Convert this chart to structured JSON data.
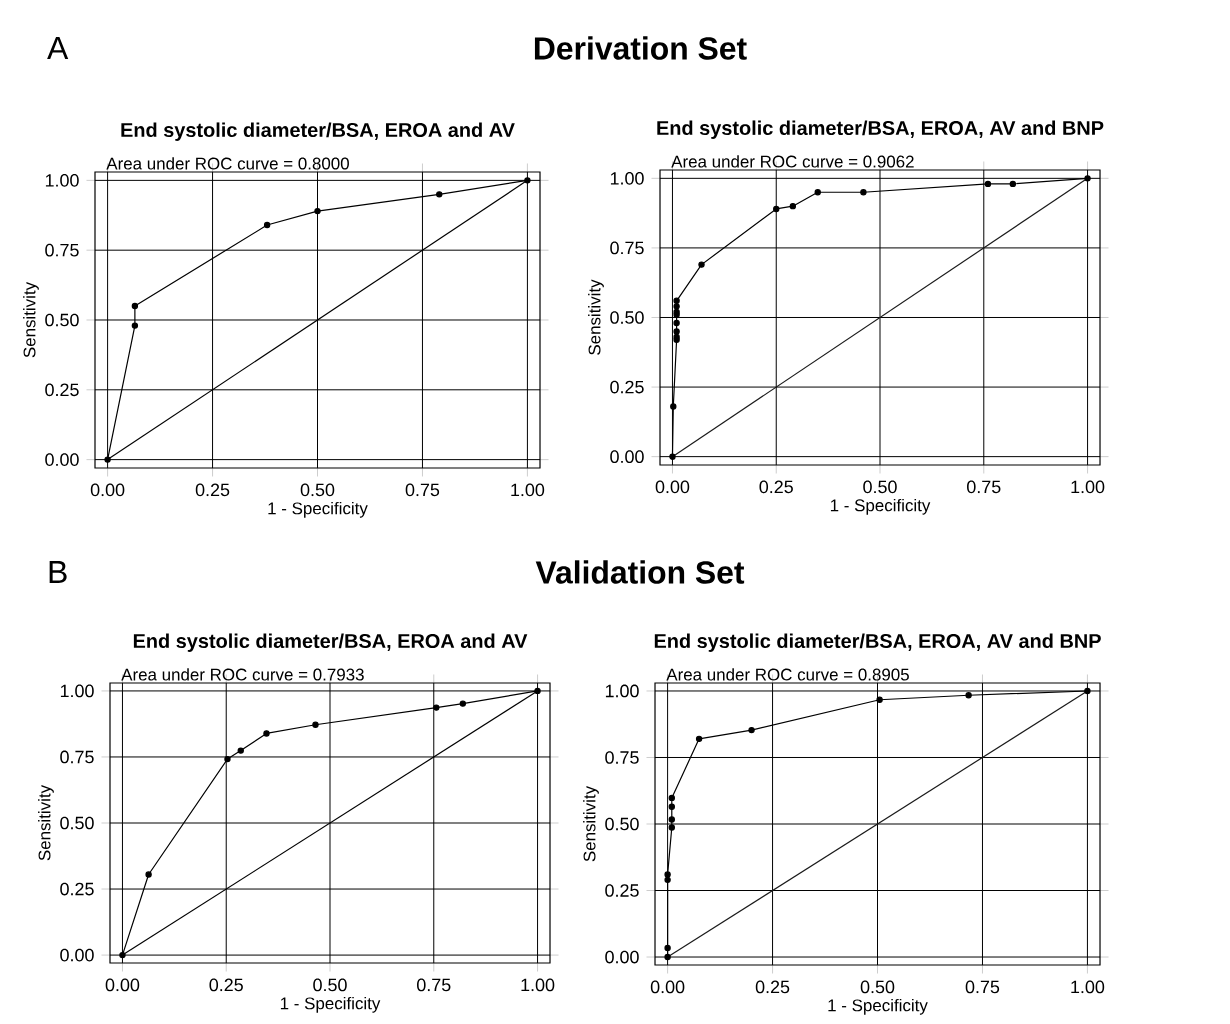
{
  "chart_data": [
    {
      "type": "line",
      "title": "End systolic diameter/BSA, EROA and AV",
      "xlabel": "1 - Specificity",
      "ylabel": "Sensitivity",
      "annotations": [
        "Area under ROC curve = 0.8000",
        "A",
        "Derivation Set"
      ],
      "xlim": [
        -0.03,
        1.03
      ],
      "ylim": [
        -0.03,
        1.03
      ],
      "grid": true,
      "xticks": [
        {
          "value": 0,
          "label": "0.00"
        },
        {
          "value": 0.25,
          "label": "0.25"
        },
        {
          "value": 0.5,
          "label": "0.50"
        },
        {
          "value": 0.75,
          "label": "0.75"
        },
        {
          "value": 1,
          "label": "1.00"
        }
      ],
      "yticks": [
        {
          "value": 0,
          "label": "0.00"
        },
        {
          "value": 0.25,
          "label": "0.25"
        },
        {
          "value": 0.5,
          "label": "0.50"
        },
        {
          "value": 0.75,
          "label": "0.75"
        },
        {
          "value": 1,
          "label": "1.00"
        }
      ],
      "series": [
        {
          "color": "#000000",
          "marker": "circle",
          "x": [
            0,
            0.065,
            0.065,
            0.38,
            0.5,
            0.79,
            1
          ],
          "values": [
            0,
            0.48,
            0.55,
            0.84,
            0.89,
            0.95,
            1
          ]
        },
        {
          "color": "#000000",
          "marker": "none",
          "x": [
            0,
            1
          ],
          "values": [
            0,
            1
          ]
        }
      ]
    },
    {
      "type": "line",
      "title": "End systolic diameter/BSA, EROA, AV and BNP",
      "xlabel": "1 - Specificity",
      "ylabel": "Sensitivity",
      "annotations": [
        "Area under ROC curve = 0.9062"
      ],
      "xlim": [
        -0.03,
        1.03
      ],
      "ylim": [
        -0.03,
        1.03
      ],
      "grid": true,
      "xticks": [
        {
          "value": 0,
          "label": "0.00"
        },
        {
          "value": 0.25,
          "label": "0.25"
        },
        {
          "value": 0.5,
          "label": "0.50"
        },
        {
          "value": 0.75,
          "label": "0.75"
        },
        {
          "value": 1,
          "label": "1.00"
        }
      ],
      "yticks": [
        {
          "value": 0,
          "label": "0.00"
        },
        {
          "value": 0.25,
          "label": "0.25"
        },
        {
          "value": 0.5,
          "label": "0.50"
        },
        {
          "value": 0.75,
          "label": "0.75"
        },
        {
          "value": 1,
          "label": "1.00"
        }
      ],
      "series": [
        {
          "color": "#000000",
          "marker": "circle",
          "x": [
            0,
            0.002,
            0.01,
            0.01,
            0.01,
            0.01,
            0.01,
            0.01,
            0.01,
            0.01,
            0.07,
            0.25,
            0.29,
            0.35,
            0.46,
            0.76,
            0.82,
            1
          ],
          "values": [
            0,
            0.18,
            0.42,
            0.43,
            0.45,
            0.48,
            0.51,
            0.52,
            0.54,
            0.56,
            0.69,
            0.89,
            0.9,
            0.95,
            0.95,
            0.98,
            0.98,
            1
          ]
        },
        {
          "color": "#1a1a1a",
          "marker": "none",
          "x": [
            0,
            1
          ],
          "values": [
            0,
            1
          ]
        }
      ]
    },
    {
      "type": "line",
      "title": "End systolic diameter/BSA, EROA and AV",
      "xlabel": "1 - Specificity",
      "ylabel": "Sensitivity",
      "annotations": [
        "Area under ROC curve = 0.7933",
        "B",
        "Validation Set"
      ],
      "xlim": [
        -0.03,
        1.03
      ],
      "ylim": [
        -0.03,
        1.03
      ],
      "grid": true,
      "xticks": [
        {
          "value": 0,
          "label": "0.00"
        },
        {
          "value": 0.25,
          "label": "0.25"
        },
        {
          "value": 0.5,
          "label": "0.50"
        },
        {
          "value": 0.75,
          "label": "0.75"
        },
        {
          "value": 1,
          "label": "1.00"
        }
      ],
      "yticks": [
        {
          "value": 0,
          "label": "0.00"
        },
        {
          "value": 0.25,
          "label": "0.25"
        },
        {
          "value": 0.5,
          "label": "0.50"
        },
        {
          "value": 0.75,
          "label": "0.75"
        },
        {
          "value": 1,
          "label": "1.00"
        }
      ],
      "series": [
        {
          "color": "#000000",
          "marker": "circle",
          "x": [
            0,
            0.063,
            0.253,
            0.285,
            0.347,
            0.465,
            0.756,
            0.82,
            1
          ],
          "values": [
            0,
            0.305,
            0.742,
            0.774,
            0.839,
            0.872,
            0.937,
            0.952,
            1
          ]
        },
        {
          "color": "#000000",
          "marker": "none",
          "x": [
            0,
            1
          ],
          "values": [
            0,
            1
          ]
        }
      ]
    },
    {
      "type": "line",
      "title": "End systolic diameter/BSA, EROA, AV and BNP",
      "xlabel": "1 - Specificity",
      "ylabel": "Sensitivity",
      "annotations": [
        "Area under ROC curve = 0.8905"
      ],
      "xlim": [
        -0.03,
        1.03
      ],
      "ylim": [
        -0.03,
        1.03
      ],
      "grid": true,
      "xticks": [
        {
          "value": 0,
          "label": "0.00"
        },
        {
          "value": 0.25,
          "label": "0.25"
        },
        {
          "value": 0.5,
          "label": "0.50"
        },
        {
          "value": 0.75,
          "label": "0.75"
        },
        {
          "value": 1,
          "label": "1.00"
        }
      ],
      "yticks": [
        {
          "value": 0,
          "label": "0.00"
        },
        {
          "value": 0.25,
          "label": "0.25"
        },
        {
          "value": 0.5,
          "label": "0.50"
        },
        {
          "value": 0.75,
          "label": "0.75"
        },
        {
          "value": 1,
          "label": "1.00"
        }
      ],
      "series": [
        {
          "color": "#000000",
          "marker": "circle",
          "x": [
            0,
            0,
            0,
            0,
            0.01,
            0.01,
            0.01,
            0.01,
            0.075,
            0.2,
            0.505,
            0.717,
            1
          ],
          "values": [
            0,
            0.034,
            0.29,
            0.31,
            0.487,
            0.517,
            0.565,
            0.598,
            0.82,
            0.853,
            0.967,
            0.984,
            1
          ]
        },
        {
          "color": "#1a1a1a",
          "marker": "none",
          "x": [
            0,
            1
          ],
          "values": [
            0,
            1
          ]
        }
      ]
    }
  ]
}
